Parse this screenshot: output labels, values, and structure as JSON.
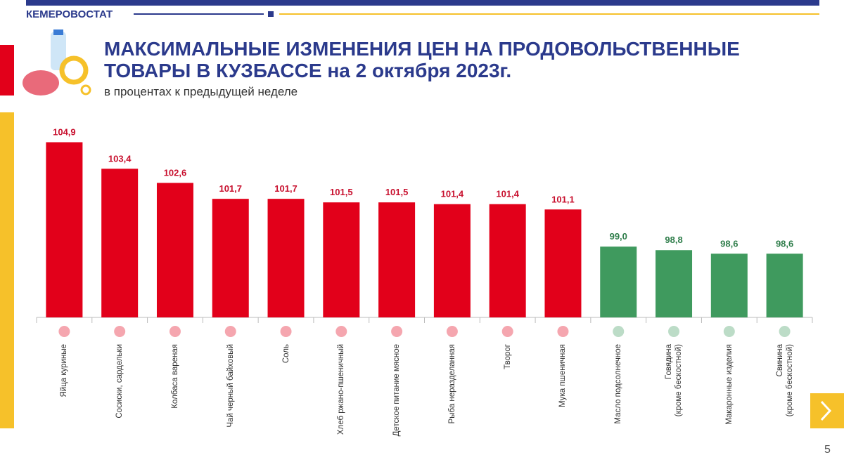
{
  "header": {
    "org": "КЕМЕРОВОСТАТ",
    "page_number": "5"
  },
  "chart_data": {
    "type": "bar",
    "title": "МАКСИМАЛЬНЫЕ ИЗМЕНЕНИЯ ЦЕН НА ПРОДОВОЛЬСТВЕННЫЕ ТОВАРЫ В КУЗБАССЕ на 2 октября 2023г.",
    "subtitle": "в процентах к предыдущей неделе",
    "categories": [
      "Яйца куриные",
      "Сосиски, сардельки",
      "Колбаса вареная",
      "Чай черный байховый",
      "Соль",
      "Хлеб ржано-пшеничный",
      "Детское питание мясное",
      "Рыба неразделанная",
      "Творог",
      "Мука пшеничная",
      "Масло подсолнечное",
      "Говядина\n(кроме бескостной)",
      "Макаронные изделия",
      "Свинина\n(кроме бескостной)"
    ],
    "values": [
      104.9,
      103.4,
      102.6,
      101.7,
      101.7,
      101.5,
      101.5,
      101.4,
      101.4,
      101.1,
      99.0,
      98.8,
      98.6,
      98.6
    ],
    "value_labels": [
      "104,9",
      "103,4",
      "102,6",
      "101,7",
      "101,7",
      "101,5",
      "101,5",
      "101,4",
      "101,4",
      "101,1",
      "99,0",
      "98,8",
      "98,6",
      "98,6"
    ],
    "colors": [
      "#e2001a",
      "#e2001a",
      "#e2001a",
      "#e2001a",
      "#e2001a",
      "#e2001a",
      "#e2001a",
      "#e2001a",
      "#e2001a",
      "#e2001a",
      "#3f9a5e",
      "#3f9a5e",
      "#3f9a5e",
      "#3f9a5e"
    ],
    "label_colors": [
      "#c8102e",
      "#c8102e",
      "#c8102e",
      "#c8102e",
      "#c8102e",
      "#c8102e",
      "#c8102e",
      "#c8102e",
      "#c8102e",
      "#c8102e",
      "#2e7d4a",
      "#2e7d4a",
      "#2e7d4a",
      "#2e7d4a"
    ],
    "ylim": [
      95,
      105
    ]
  }
}
